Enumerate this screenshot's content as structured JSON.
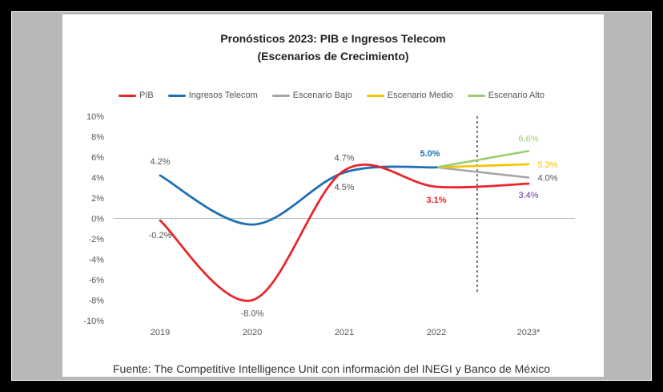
{
  "chart_data": {
    "type": "line",
    "title": "Pronósticos 2023: PIB e Ingresos Telecom",
    "subtitle": "(Escenarios de Crecimiento)",
    "categories": [
      "2019",
      "2020",
      "2021",
      "2022",
      "2023*"
    ],
    "ylim": [
      -10,
      10
    ],
    "yticks": [
      "10%",
      "8%",
      "6%",
      "4%",
      "2%",
      "0%",
      "-2%",
      "-4%",
      "-6%",
      "-8%",
      "-10%"
    ],
    "grid": false,
    "legend_position": "top",
    "series": [
      {
        "name": "PIB",
        "color": "#e8262b",
        "values": [
          -0.2,
          -8.0,
          4.7,
          3.1,
          3.4
        ],
        "labels": [
          "-0.2%",
          "-8.0%",
          "4.7%",
          "3.1%",
          "3.4%"
        ]
      },
      {
        "name": "Ingresos Telecom",
        "color": "#1f6fb4",
        "values": [
          4.2,
          -0.6,
          4.5,
          5.0,
          null
        ],
        "labels": [
          "4.2%",
          "",
          "4.5%",
          "5.0%",
          ""
        ]
      },
      {
        "name": "Escenario Bajo",
        "color": "#a6a6a6",
        "values": [
          null,
          null,
          null,
          5.0,
          4.0
        ],
        "labels": [
          "",
          "",
          "",
          "",
          "4.0%"
        ]
      },
      {
        "name": "Escenario Medio",
        "color": "#f5c200",
        "values": [
          null,
          null,
          null,
          5.0,
          5.3
        ],
        "labels": [
          "",
          "",
          "",
          "",
          "5.3%"
        ]
      },
      {
        "name": "Escenario Alto",
        "color": "#9acd72",
        "values": [
          null,
          null,
          null,
          5.0,
          6.6
        ],
        "labels": [
          "",
          "",
          "",
          "",
          "6.6%"
        ]
      }
    ]
  },
  "source": "Fuente: The Competitive Intelligence Unit con información del INEGI y Banco de México"
}
